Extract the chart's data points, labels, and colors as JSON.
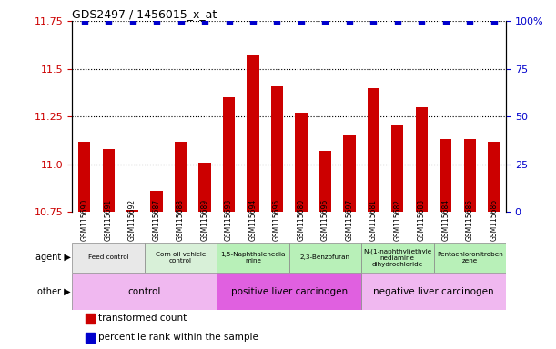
{
  "title": "GDS2497 / 1456015_x_at",
  "samples": [
    "GSM115690",
    "GSM115691",
    "GSM115692",
    "GSM115687",
    "GSM115688",
    "GSM115689",
    "GSM115693",
    "GSM115694",
    "GSM115695",
    "GSM115680",
    "GSM115696",
    "GSM115697",
    "GSM115681",
    "GSM115682",
    "GSM115683",
    "GSM115684",
    "GSM115685",
    "GSM115686"
  ],
  "values": [
    11.12,
    11.08,
    10.76,
    10.86,
    11.12,
    11.01,
    11.35,
    11.57,
    11.41,
    11.27,
    11.07,
    11.15,
    11.4,
    11.21,
    11.3,
    11.13,
    11.13,
    11.12
  ],
  "percentiles": [
    100,
    100,
    100,
    100,
    100,
    100,
    100,
    100,
    100,
    100,
    100,
    100,
    100,
    100,
    100,
    100,
    100,
    100
  ],
  "bar_color": "#CC0000",
  "dot_color": "#0000CC",
  "ylim_left": [
    10.75,
    11.75
  ],
  "ylim_right": [
    0,
    100
  ],
  "yticks_left": [
    10.75,
    11.0,
    11.25,
    11.5,
    11.75
  ],
  "yticks_right": [
    0,
    25,
    50,
    75,
    100
  ],
  "grid_lines": [
    11.0,
    11.25,
    11.5,
    11.75
  ],
  "agent_groups": [
    {
      "label": "Feed control",
      "start": 0,
      "end": 3,
      "color": "#e8e8e8"
    },
    {
      "label": "Corn oil vehicle\ncontrol",
      "start": 3,
      "end": 6,
      "color": "#d8f0d8"
    },
    {
      "label": "1,5-Naphthalenedia\nmine",
      "start": 6,
      "end": 9,
      "color": "#b8f0b8"
    },
    {
      "label": "2,3-Benzofuran",
      "start": 9,
      "end": 12,
      "color": "#b8f0b8"
    },
    {
      "label": "N-(1-naphthyl)ethyle\nnediamine\ndihydrochloride",
      "start": 12,
      "end": 15,
      "color": "#b8f0b8"
    },
    {
      "label": "Pentachloronitroben\nzene",
      "start": 15,
      "end": 18,
      "color": "#b8f0b8"
    }
  ],
  "other_groups": [
    {
      "label": "control",
      "start": 0,
      "end": 6,
      "color": "#f0b8f0"
    },
    {
      "label": "positive liver carcinogen",
      "start": 6,
      "end": 12,
      "color": "#e060e0"
    },
    {
      "label": "negative liver carcinogen",
      "start": 12,
      "end": 18,
      "color": "#f0b8f0"
    }
  ],
  "legend_items": [
    {
      "color": "#CC0000",
      "label": "transformed count"
    },
    {
      "color": "#0000CC",
      "label": "percentile rank within the sample"
    }
  ]
}
